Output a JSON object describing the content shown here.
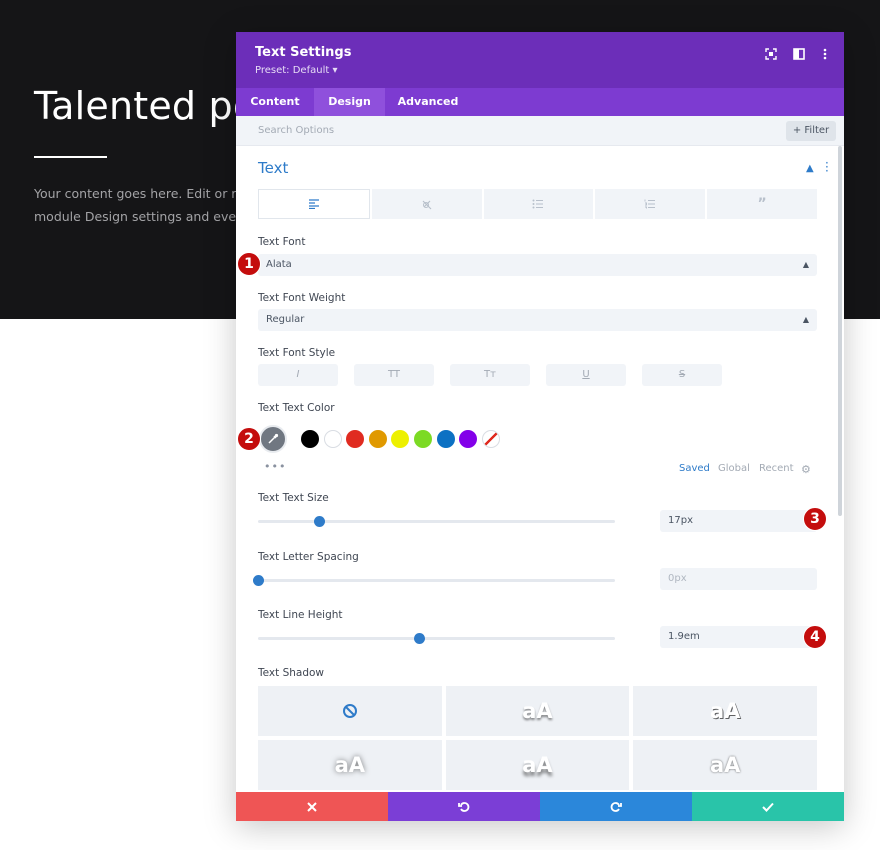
{
  "background": {
    "title": "Talented peo",
    "body_lines": [
      "Your content goes here. Edit or remo",
      "module Design settings and even ap"
    ]
  },
  "modal": {
    "title": "Text Settings",
    "preset": "Preset: Default ▾",
    "tabs": [
      {
        "label": "Content",
        "active": false
      },
      {
        "label": "Design",
        "active": true
      },
      {
        "label": "Advanced",
        "active": false
      }
    ],
    "search_placeholder": "Search Options",
    "filter_label": "+ Filter",
    "section_title": "Text",
    "text_font": {
      "label": "Text Font",
      "value": "Alata"
    },
    "font_weight": {
      "label": "Text Font Weight",
      "value": "Regular"
    },
    "font_style": {
      "label": "Text Font Style",
      "buttons": [
        "I",
        "TT",
        "Tт",
        "U",
        "S"
      ]
    },
    "text_color": {
      "label": "Text Text Color",
      "swatches": [
        "#000000",
        "#ffffff",
        "#e02b20",
        "#e09900",
        "#edf000",
        "#7cda24",
        "#0c71c3",
        "#8300e9"
      ],
      "palette_tabs": [
        "Saved",
        "Global",
        "Recent"
      ],
      "active_palette": "Saved"
    },
    "text_size": {
      "label": "Text Text Size",
      "value": "17px",
      "slider_fraction": 0.17
    },
    "letter_spacing": {
      "label": "Text Letter Spacing",
      "value": "0px",
      "slider_fraction": 0.0
    },
    "line_height": {
      "label": "Text Line Height",
      "value": "1.9em",
      "slider_fraction": 0.45
    },
    "text_shadow": {
      "label": "Text Shadow",
      "preview": "aA"
    },
    "footer_colors": [
      "#ef5555",
      "#7b3ed6",
      "#2b87da",
      "#29c4a9"
    ]
  },
  "badges": [
    "1",
    "2",
    "3",
    "4"
  ]
}
